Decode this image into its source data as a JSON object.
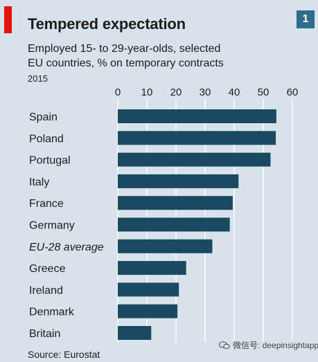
{
  "header": {
    "title": "Tempered expectation",
    "chart_number": "1",
    "subtitle_line1": "Employed 15- to 29-year-olds, selected",
    "subtitle_line2": "EU countries, % on temporary contracts",
    "year": "2015"
  },
  "footer": {
    "source": "Source: Eurostat",
    "watermark": "微信号: deepinsightapp"
  },
  "colors": {
    "bar": "#194a62",
    "background": "#d7e2ea",
    "gridline": "#ffffff",
    "accent_red": "#e3120b",
    "badge": "#2f6c8c"
  },
  "chart_data": {
    "type": "bar",
    "orientation": "horizontal",
    "title": "Tempered expectation",
    "subtitle": "Employed 15- to 29-year-olds, selected EU countries, % on temporary contracts",
    "xlim": [
      0,
      60
    ],
    "ticks": [
      0,
      10,
      20,
      30,
      40,
      50,
      60
    ],
    "grid": true,
    "categories": [
      "Spain",
      "Poland",
      "Portugal",
      "Italy",
      "France",
      "Germany",
      "EU-28 average",
      "Greece",
      "Ireland",
      "Denmark",
      "Britain"
    ],
    "values": [
      54.5,
      54.3,
      52.5,
      41.5,
      39.5,
      38.5,
      32.5,
      23.5,
      21.0,
      20.5,
      11.5
    ],
    "italic_categories": [
      "EU-28 average"
    ]
  }
}
